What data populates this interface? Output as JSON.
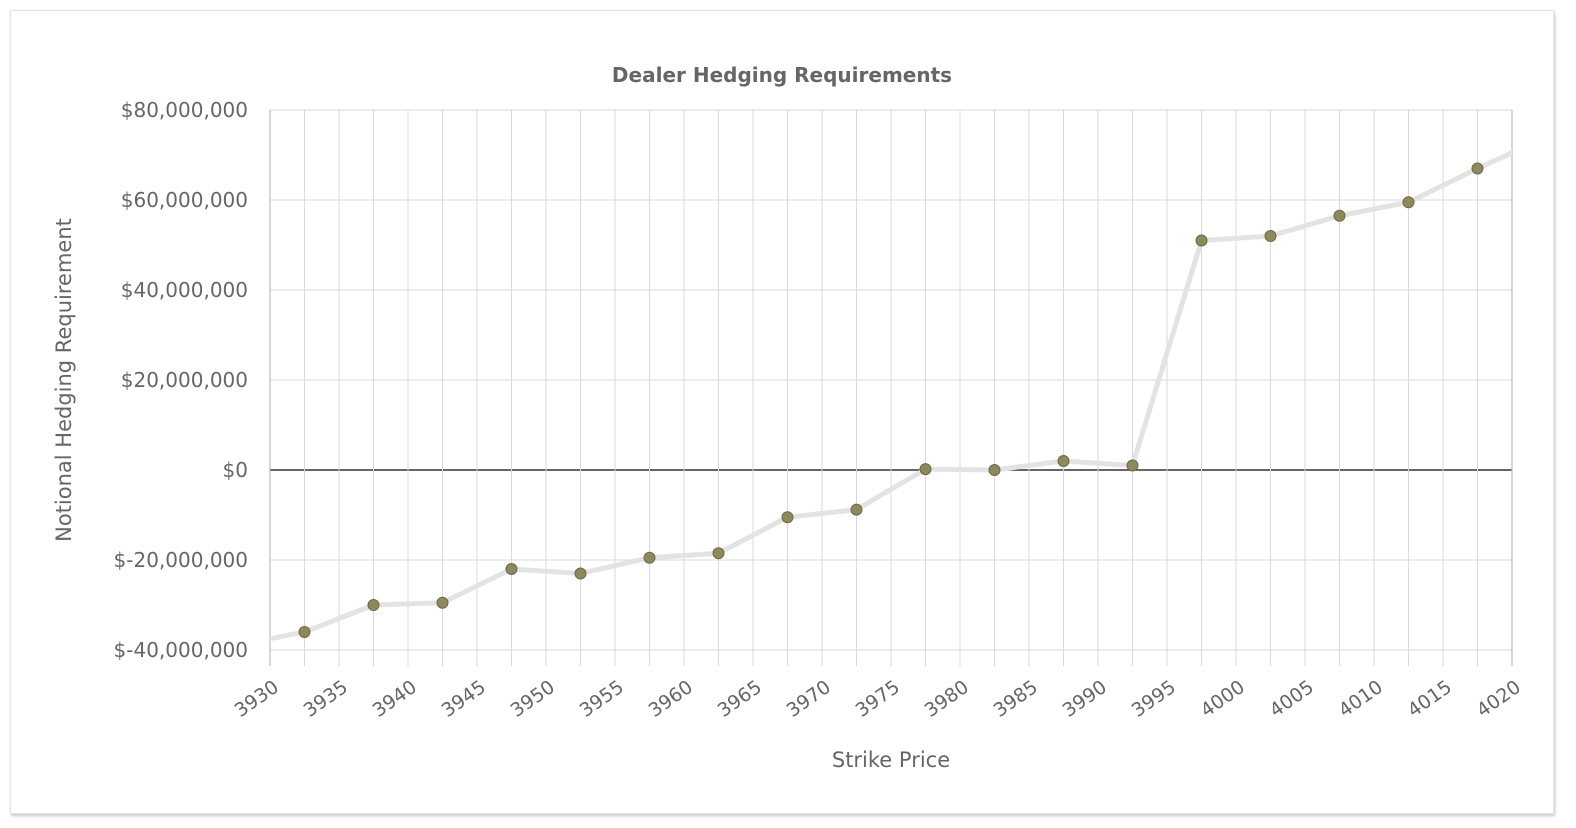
{
  "chart_data": {
    "type": "line",
    "title": "Dealer Hedging Requirements",
    "xlabel": "Strike Price",
    "ylabel": "Notional Hedging Requirement",
    "x_ticks": [
      "3930",
      "3935",
      "3940",
      "3945",
      "3950",
      "3955",
      "3960",
      "3965",
      "3970",
      "3975",
      "3980",
      "3985",
      "3990",
      "3995",
      "4000",
      "4005",
      "4010",
      "4015",
      "4020"
    ],
    "y_ticks": [
      "$80,000,000",
      "$60,000,000",
      "$40,000,000",
      "$20,000,000",
      "$0",
      "$-20,000,000",
      "$-40,000,000"
    ],
    "xlim": [
      3930,
      4020
    ],
    "ylim": [
      -40000000,
      80000000
    ],
    "grid": true,
    "marker_color": "#8c8a5c",
    "line_color": "#e3e3e3",
    "series": [
      {
        "x": [
          3927.5,
          3932.5,
          3937.5,
          3942.5,
          3947.5,
          3952.5,
          3957.5,
          3962.5,
          3967.5,
          3972.5,
          3977.5,
          3982.5,
          3987.5,
          3992.5,
          3997.5,
          4002.5,
          4007.5,
          4012.5,
          4017.5,
          4022.5
        ],
        "values": [
          -39000000,
          -36000000,
          -30000000,
          -29500000,
          -22000000,
          -23000000,
          -19500000,
          -18500000,
          -10500000,
          -8800000,
          200000,
          0,
          2000000,
          1000000,
          51000000,
          52000000,
          56500000,
          59500000,
          67000000,
          74000000
        ]
      }
    ]
  }
}
